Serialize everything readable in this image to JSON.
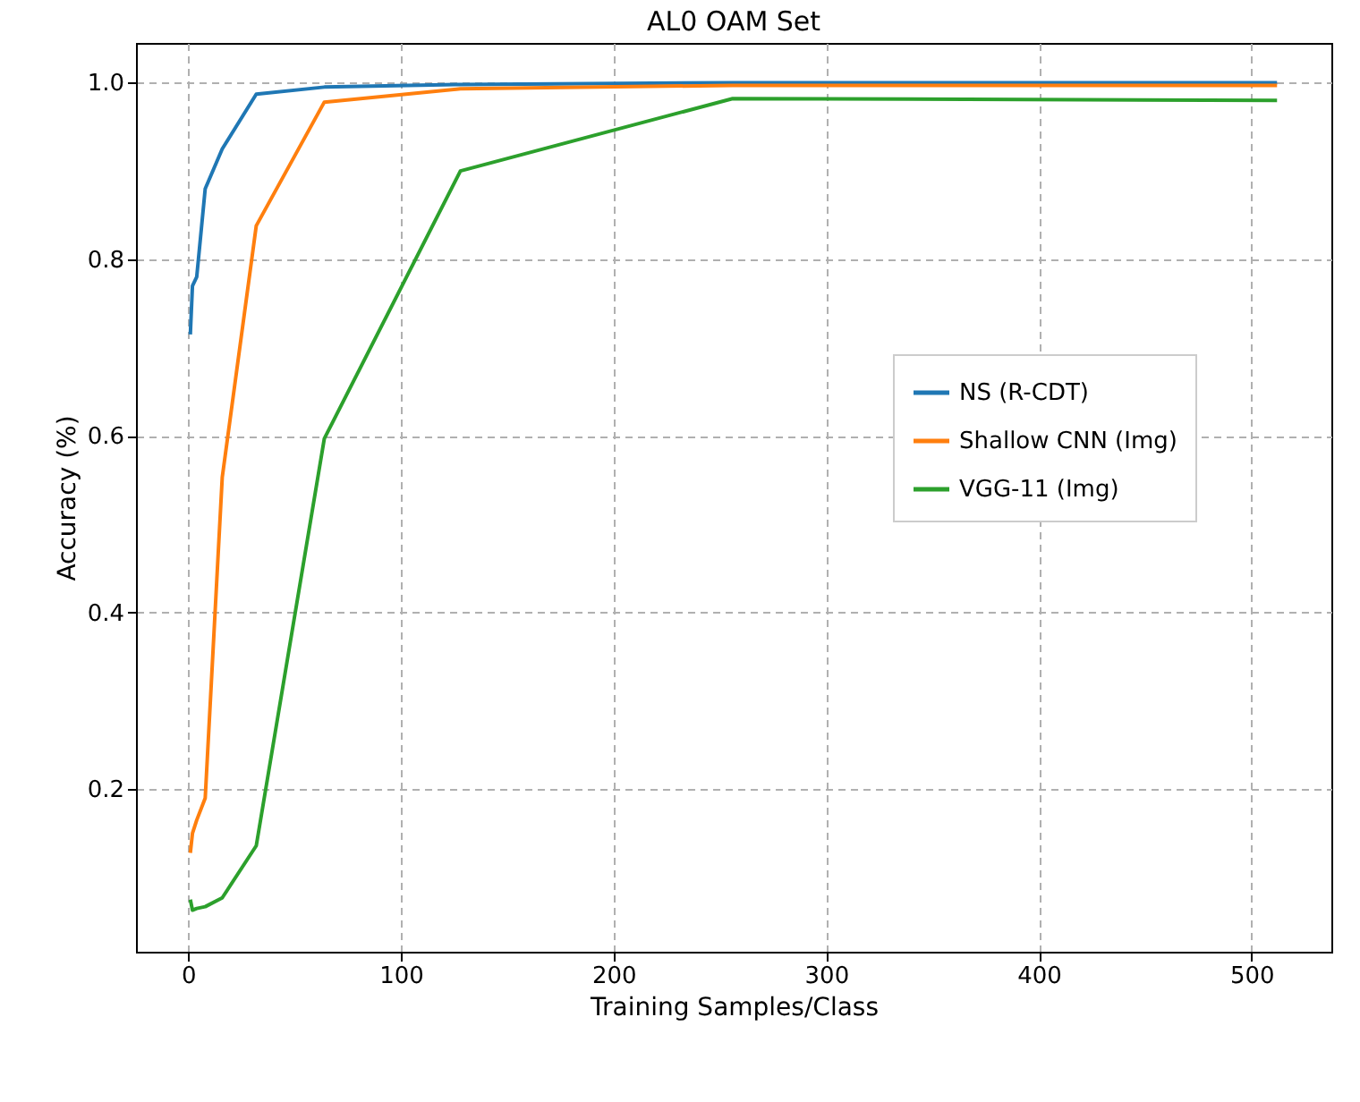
{
  "chart_data": {
    "type": "line",
    "title": "AL0 OAM Set",
    "xlabel": "Training Samples/Class",
    "ylabel": "Accuracy (%)",
    "x": [
      1,
      2,
      4,
      8,
      16,
      32,
      64,
      128,
      256,
      512
    ],
    "series": [
      {
        "name": "NS (R-CDT)",
        "color": "#1f77b4",
        "values": [
          0.715,
          0.77,
          0.78,
          0.88,
          0.925,
          0.987,
          0.995,
          0.998,
          1.0,
          1.0
        ]
      },
      {
        "name": "Shallow CNN (Img)",
        "color": "#ff7f0e",
        "values": [
          0.128,
          0.15,
          0.165,
          0.19,
          0.553,
          0.838,
          0.978,
          0.993,
          0.997,
          0.997
        ]
      },
      {
        "name": "VGG-11 (Img)",
        "color": "#2ca02c",
        "values": [
          0.075,
          0.063,
          0.065,
          0.067,
          0.077,
          0.136,
          0.597,
          0.9,
          0.982,
          0.98
        ]
      }
    ],
    "xlim": [
      -24.55,
      537.55
    ],
    "xticks": [
      0,
      100,
      200,
      300,
      400,
      500
    ],
    "ylim": [
      0.016,
      1.045
    ],
    "yticks": [
      {
        "value": 0.2,
        "label": "0.2"
      },
      {
        "value": 0.4,
        "label": "0.4"
      },
      {
        "value": 0.6,
        "label": "0.6"
      },
      {
        "value": 0.8,
        "label": "0.8"
      },
      {
        "value": 1.0,
        "label": "1.0"
      }
    ],
    "grid": true,
    "legend": "center right"
  }
}
